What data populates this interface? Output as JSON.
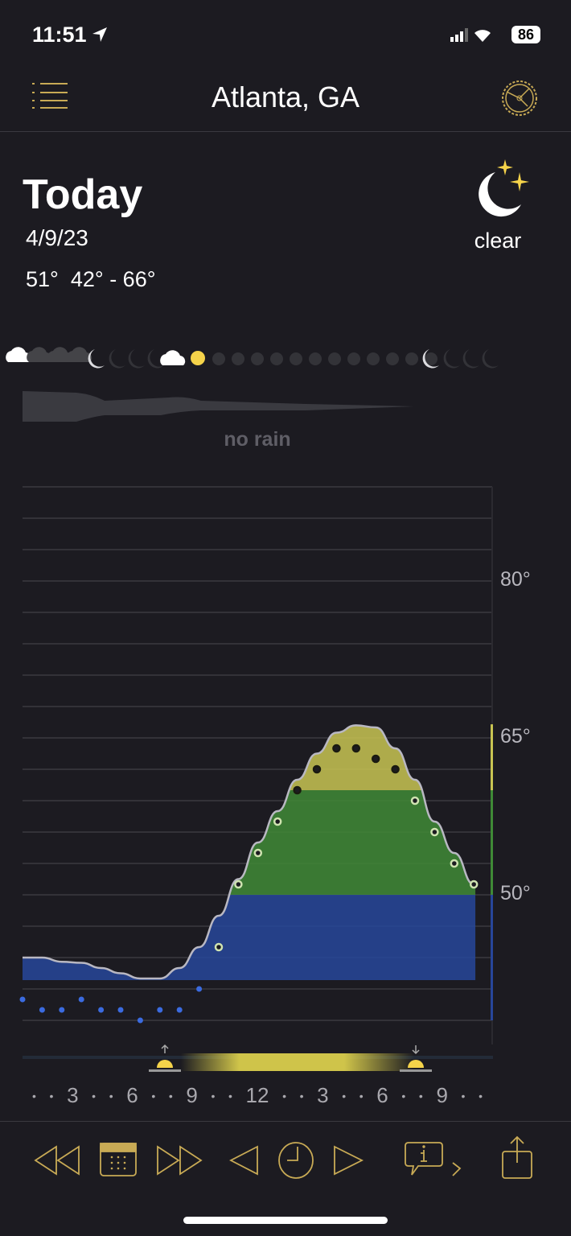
{
  "status": {
    "time": "11:51",
    "battery": "86"
  },
  "header": {
    "title": "Atlanta, GA",
    "menu_icon": "list-icon",
    "settings_icon": "dial-icon"
  },
  "today": {
    "label": "Today",
    "date": "4/9/23",
    "current": "51°",
    "range": "42° - 66°",
    "condition": "clear",
    "condition_icon": "moon-stars-icon"
  },
  "precip": {
    "label": "no rain"
  },
  "chart_data": {
    "type": "line",
    "y_ticks": [
      {
        "value": 80,
        "label": "80°"
      },
      {
        "value": 65,
        "label": "65°"
      },
      {
        "value": 50,
        "label": "50°"
      }
    ],
    "ylim": [
      38,
      89
    ],
    "x_labels": [
      "3",
      "6",
      "9",
      "12",
      "3",
      "6",
      "9"
    ],
    "hours": [
      0,
      1,
      2,
      3,
      4,
      5,
      6,
      7,
      8,
      9,
      10,
      11,
      12,
      13,
      14,
      15,
      16,
      17,
      18,
      19,
      20,
      21,
      22,
      23
    ],
    "temperature": [
      44,
      44,
      43.6,
      43.5,
      43,
      42.5,
      42,
      42,
      43,
      45,
      48,
      51.5,
      55,
      58,
      61,
      63.5,
      65.5,
      66.2,
      66,
      64,
      61,
      57,
      54,
      51
    ],
    "dots": [
      40,
      39,
      39,
      40,
      39,
      39,
      38,
      39,
      39,
      41,
      45,
      51,
      54,
      57,
      60,
      62,
      64,
      64,
      63,
      62,
      59,
      56,
      53,
      51
    ],
    "bands": [
      {
        "from": 38,
        "to": 50,
        "color": "#27469a"
      },
      {
        "from": 50,
        "to": 60,
        "color": "#3f8a36"
      },
      {
        "from": 60,
        "to": 70,
        "color": "#c8c452"
      }
    ],
    "sunrise_hour": 7.2,
    "sunset_hour": 20.1
  },
  "toolbar": {
    "icons": [
      "rewind-day-icon",
      "calendar-icon",
      "forward-day-icon",
      "previous-hour-icon",
      "clock-icon",
      "next-hour-icon",
      "info-icon",
      "share-icon"
    ]
  },
  "colors": {
    "accent": "#c8aa55",
    "bg": "#1c1b21"
  }
}
